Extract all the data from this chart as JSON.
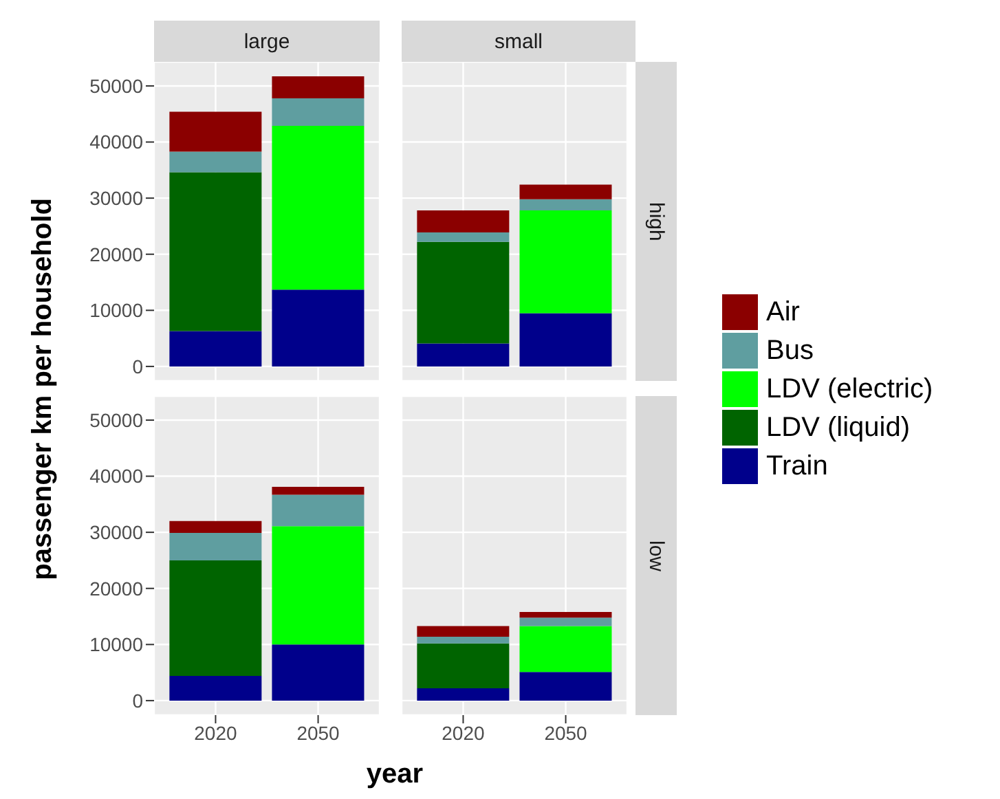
{
  "chart_data": [
    {
      "type": "bar",
      "stacked": true,
      "title": "large",
      "ylabel": "passenger km per household",
      "categories": [
        "2020",
        "2050"
      ],
      "ylim": [
        -2585,
        54285
      ],
      "yticks": [
        0,
        10000,
        20000,
        30000,
        40000,
        50000
      ],
      "grid": true,
      "tick_labels": "y",
      "legend": "right",
      "series": [
        {
          "name": "Train",
          "color": "#00008b",
          "values": [
            6300,
            13700
          ]
        },
        {
          "name": "LDV (liquid)",
          "color": "#006400",
          "values": [
            28300,
            0
          ]
        },
        {
          "name": "LDV (electric)",
          "color": "#00ff00",
          "values": [
            0,
            29200
          ]
        },
        {
          "name": "Bus",
          "color": "#5f9ea0",
          "values": [
            3700,
            4900
          ]
        },
        {
          "name": "Air",
          "color": "#8b0000",
          "values": [
            7100,
            3900
          ]
        }
      ]
    },
    {
      "type": "bar",
      "stacked": true,
      "title": "small",
      "y2label": "high",
      "categories": [
        "2020",
        "2050"
      ],
      "ylim": [
        -2585,
        54285
      ],
      "yticks": [
        0,
        10000,
        20000,
        30000,
        40000,
        50000
      ],
      "grid": true,
      "tick_labels": false,
      "series": [
        {
          "color": "#00008b",
          "values": [
            4100,
            9500
          ]
        },
        {
          "color": "#006400",
          "values": [
            18100,
            0
          ]
        },
        {
          "color": "#00ff00",
          "values": [
            0,
            18300
          ]
        },
        {
          "color": "#5f9ea0",
          "values": [
            1700,
            2000
          ]
        },
        {
          "color": "#8b0000",
          "values": [
            3900,
            2600
          ]
        }
      ]
    },
    {
      "type": "bar",
      "stacked": true,
      "xlabel": "year",
      "categories": [
        "2020",
        "2050"
      ],
      "ylim": [
        -2585,
        54285
      ],
      "yticks": [
        0,
        10000,
        20000,
        30000,
        40000,
        50000
      ],
      "grid": true,
      "series": [
        {
          "color": "#00008b",
          "values": [
            4400,
            10000
          ]
        },
        {
          "color": "#006400",
          "values": [
            20600,
            0
          ]
        },
        {
          "color": "#00ff00",
          "values": [
            0,
            21100
          ]
        },
        {
          "color": "#5f9ea0",
          "values": [
            4900,
            5600
          ]
        },
        {
          "color": "#8b0000",
          "values": [
            2100,
            1400
          ]
        }
      ]
    },
    {
      "type": "bar",
      "stacked": true,
      "y2label": "low",
      "categories": [
        "2020",
        "2050"
      ],
      "ylim": [
        -2585,
        54285
      ],
      "yticks": [
        0,
        10000,
        20000,
        30000,
        40000,
        50000
      ],
      "grid": true,
      "tick_labels": "x",
      "series": [
        {
          "color": "#00008b",
          "values": [
            2200,
            5100
          ]
        },
        {
          "color": "#006400",
          "values": [
            8000,
            0
          ]
        },
        {
          "color": "#00ff00",
          "values": [
            0,
            8200
          ]
        },
        {
          "color": "#5f9ea0",
          "values": [
            1200,
            1500
          ]
        },
        {
          "color": "#8b0000",
          "values": [
            1900,
            1000
          ]
        }
      ]
    }
  ]
}
